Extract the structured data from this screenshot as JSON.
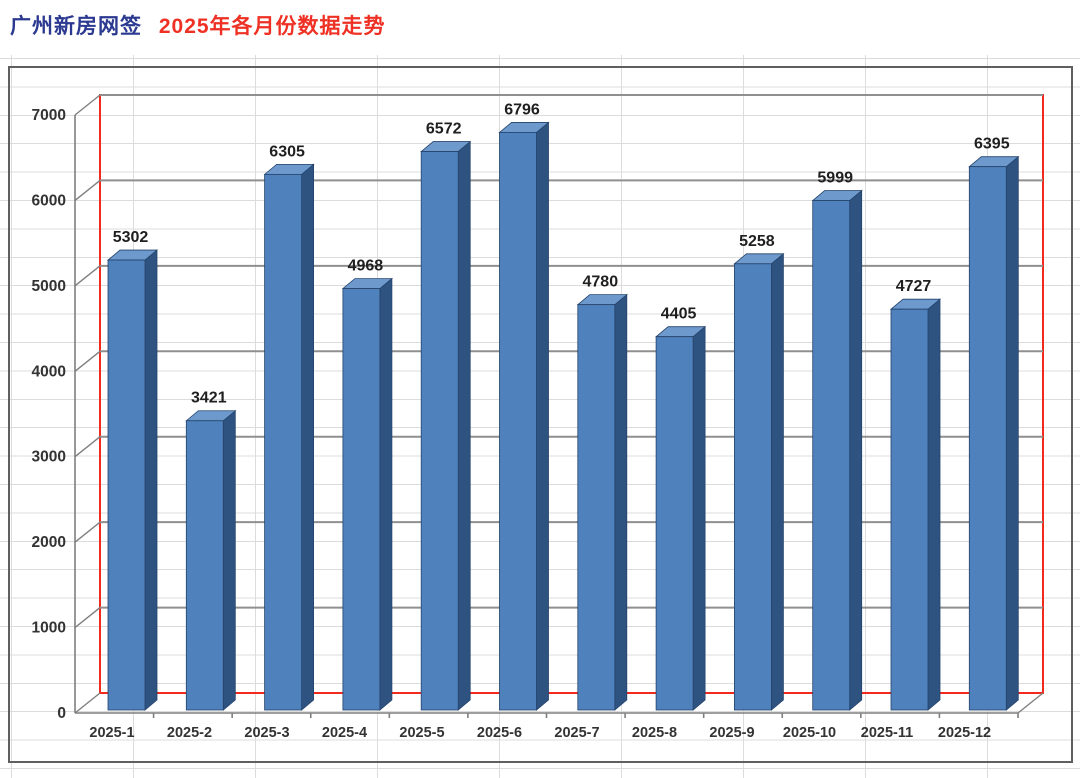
{
  "title": {
    "part1": "广州新房网签",
    "part2": "2025年各月份数据走势"
  },
  "chart_data": {
    "type": "bar",
    "title": "广州新房网签 2025年各月份数据走势",
    "categories": [
      "2025-1",
      "2025-2",
      "2025-3",
      "2025-4",
      "2025-5",
      "2025-6",
      "2025-7",
      "2025-8",
      "2025-9",
      "2025-10",
      "2025-11",
      "2025-12"
    ],
    "values": [
      5302,
      3421,
      6305,
      4968,
      6572,
      6796,
      4780,
      4405,
      5258,
      5999,
      4727,
      6395
    ],
    "data_labels_shown": true,
    "xlabel": "",
    "ylabel": "",
    "ylim": [
      0,
      7000
    ],
    "yticks": [
      0,
      1000,
      2000,
      3000,
      4000,
      5000,
      6000,
      7000
    ],
    "grid": "on",
    "legend": "none",
    "style": "excel-3d-column"
  },
  "colors": {
    "title_part1": "#2b3990",
    "title_part2": "#ee3124",
    "bar_front": "#4f81bd",
    "bar_top": "#6d99cc",
    "bar_side": "#2f5380",
    "bar_outline": "#24436b",
    "plot_border_red": "#f22a1e",
    "major_gridline": "#8f8f8f",
    "axis_line": "#7f7f7f",
    "sheet_gridline": "#dcdcdc",
    "chart_frame_border": "#5f5f5f",
    "data_label_text": "#1f1f1f",
    "axis_label_text": "#333333"
  }
}
